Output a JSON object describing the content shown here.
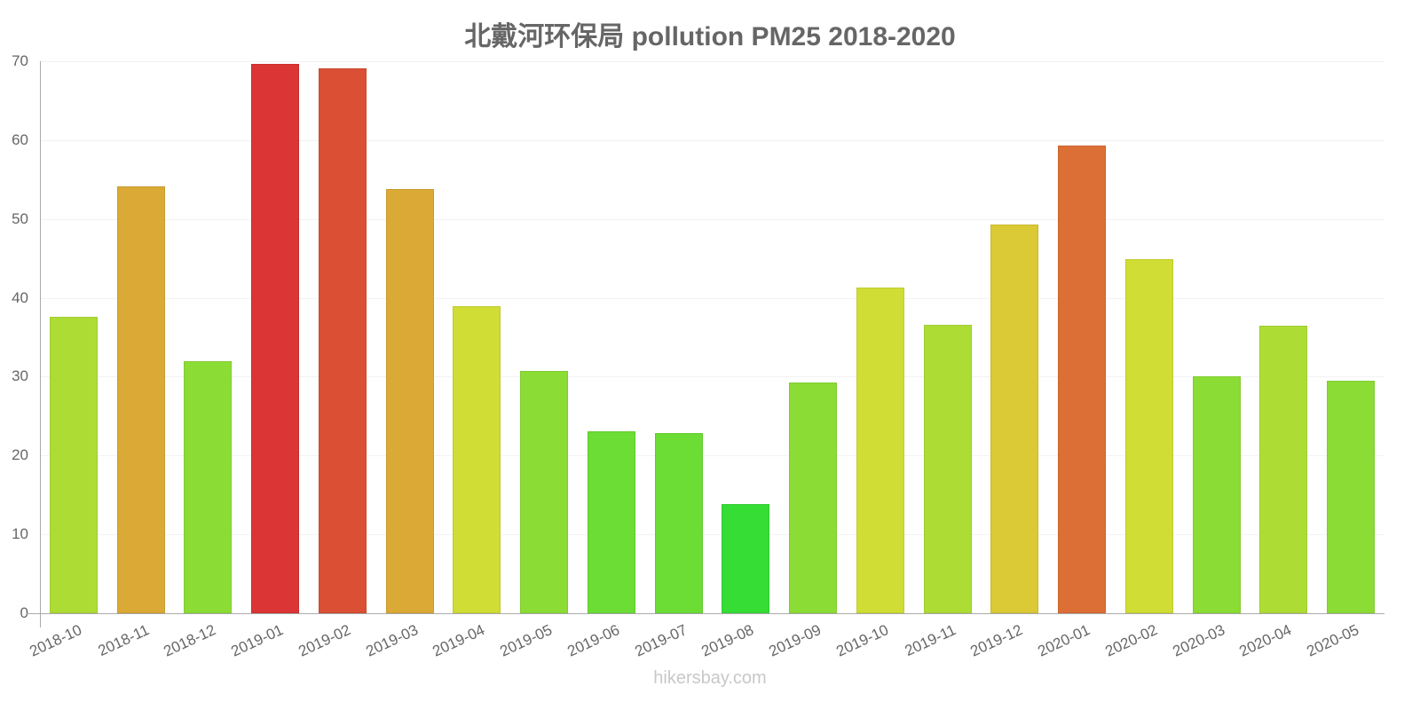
{
  "title": "北戴河环保局 pollution PM25 2018-2020",
  "watermark": "hikersbay.com",
  "y_ticks": [
    "0",
    "10",
    "20",
    "30",
    "40",
    "50",
    "60",
    "70"
  ],
  "chart_data": {
    "type": "bar",
    "title": "北戴河环保局 pollution PM25 2018-2020",
    "xlabel": "",
    "ylabel": "",
    "ylim": [
      0,
      70
    ],
    "grid": true,
    "legend": null,
    "categories": [
      "2018-10",
      "2018-11",
      "2018-12",
      "2019-01",
      "2019-02",
      "2019-03",
      "2019-04",
      "2019-05",
      "2019-06",
      "2019-07",
      "2019-08",
      "2019-09",
      "2019-10",
      "2019-11",
      "2019-12",
      "2020-01",
      "2020-02",
      "2020-03",
      "2020-04",
      "2020-05"
    ],
    "values": [
      37.6,
      54.1,
      32.0,
      69.7,
      69.1,
      53.8,
      38.9,
      30.7,
      23.1,
      22.8,
      13.8,
      29.3,
      41.3,
      36.6,
      49.3,
      59.3,
      44.9,
      30.0,
      36.5,
      29.5
    ],
    "colors": [
      "#addd35",
      "#dba935",
      "#8bdd35",
      "#db3535",
      "#db5035",
      "#dba935",
      "#cfdd35",
      "#8bdd35",
      "#6bdd35",
      "#6bdd35",
      "#35dd35",
      "#8bdd35",
      "#cfdd35",
      "#addd35",
      "#dbc935",
      "#dc6f35",
      "#cfdd35",
      "#8bdd35",
      "#addd35",
      "#8bdd35"
    ]
  }
}
